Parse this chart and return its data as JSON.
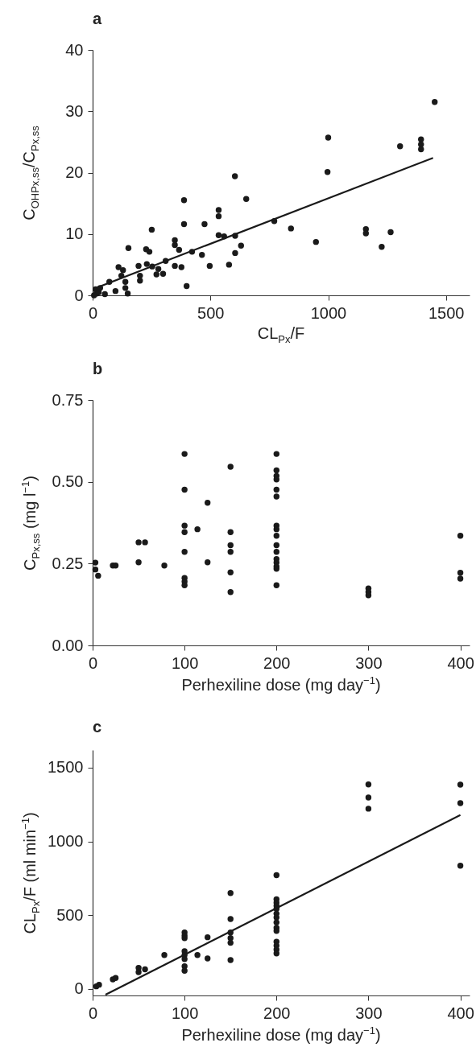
{
  "chart_data": [
    {
      "type": "scatter",
      "title": "a",
      "xlabel": "CL$_{Px}$/F",
      "ylabel": "C$_{OHPx,ss}$/C$_{Px,ss}$",
      "xlim": [
        0,
        1600
      ],
      "ylim": [
        0,
        40
      ],
      "xticks": [
        0,
        500,
        1000,
        1500
      ],
      "yticks": [
        0,
        10,
        20,
        30,
        40
      ],
      "grid": false,
      "marker": "circle",
      "series": [
        {
          "color": "#1a1a1a",
          "x": [
            1452,
            1000,
            997,
            1305,
            1394,
            1394,
            1394,
            604,
            388,
            652,
            535,
            535,
            388,
            475,
            251,
            771,
            842,
            1160,
            1160,
            1265,
            948,
            1227,
            535,
            558,
            605,
            630,
            605,
            579,
            497,
            464,
            422,
            349,
            349,
            367,
            349,
            377,
            399,
            152,
            227,
            241,
            110,
            129,
            122,
            310,
            195,
            230,
            253,
            279,
            201,
            201,
            271,
            299,
            139,
            139,
            149,
            71,
            97,
            13,
            32,
            17,
            52,
            6,
            26
          ],
          "values": [
            31.5,
            25.7,
            20.1,
            24.3,
            25.4,
            24.6,
            23.8,
            19.4,
            15.5,
            15.7,
            13.9,
            12.9,
            11.6,
            11.6,
            10.7,
            12.1,
            10.9,
            10.8,
            10.1,
            10.3,
            8.7,
            7.9,
            9.8,
            9.6,
            9.7,
            8.1,
            6.9,
            5.0,
            4.8,
            6.6,
            7.1,
            9.0,
            8.2,
            7.4,
            4.8,
            4.6,
            1.5,
            7.7,
            7.5,
            7.1,
            4.6,
            4.1,
            3.2,
            5.6,
            4.8,
            5.1,
            4.7,
            4.3,
            3.2,
            2.4,
            3.4,
            3.5,
            2.2,
            1.2,
            0.3,
            2.2,
            0.7,
            1.0,
            1.2,
            0.3,
            0.2,
            0.0,
            0.5
          ]
        },
        {
          "type": "line",
          "marker": "none",
          "color": "#1a1a1a",
          "x": [
            0,
            1445
          ],
          "values": [
            1.0,
            22.4
          ]
        }
      ]
    },
    {
      "type": "scatter",
      "title": "b",
      "xlabel": "Perhexiline dose (mg day$^{−1}$)",
      "ylabel": "C$_{Px,ss}$ (mg l$^{−1}$)",
      "xlim": [
        0,
        410
      ],
      "ylim": [
        0,
        0.75
      ],
      "xticks": [
        0,
        100,
        200,
        300,
        400
      ],
      "yticks": [
        {
          "value": 0,
          "label": "0.00"
        },
        {
          "value": 0.25,
          "label": "0.25"
        },
        {
          "value": 0.5,
          "label": "0.50"
        },
        {
          "value": 0.75,
          "label": "0.75"
        }
      ],
      "grid": false,
      "marker": "circle",
      "series": [
        {
          "color": "#1a1a1a",
          "x": [
            3,
            3,
            6,
            22,
            25,
            50,
            50,
            57,
            78,
            100,
            100,
            100,
            100,
            100,
            100,
            100,
            100,
            114,
            125,
            125,
            150,
            150,
            150,
            150,
            150,
            150,
            200,
            200,
            200,
            200,
            200,
            200,
            200,
            200,
            200,
            200,
            200,
            200,
            200,
            200,
            200,
            200,
            300,
            300,
            300,
            400,
            400,
            400
          ],
          "values": [
            0.253,
            0.232,
            0.213,
            0.244,
            0.244,
            0.315,
            0.254,
            0.315,
            0.244,
            0.585,
            0.476,
            0.366,
            0.346,
            0.286,
            0.206,
            0.195,
            0.184,
            0.355,
            0.436,
            0.254,
            0.546,
            0.346,
            0.306,
            0.286,
            0.223,
            0.163,
            0.585,
            0.535,
            0.518,
            0.507,
            0.476,
            0.455,
            0.366,
            0.355,
            0.335,
            0.306,
            0.286,
            0.264,
            0.253,
            0.241,
            0.234,
            0.184,
            0.174,
            0.163,
            0.153,
            0.335,
            0.222,
            0.204
          ]
        }
      ]
    },
    {
      "type": "scatter",
      "title": "c",
      "xlabel": "Perhexiline dose (mg day$^{−1}$)",
      "ylabel": "CL$_{Px}$/F (ml min$^{−1}$)",
      "xlim": [
        0,
        410
      ],
      "ylim": [
        -45,
        1620
      ],
      "xticks": [
        0,
        100,
        200,
        300,
        400
      ],
      "yticks": [
        0,
        500,
        1000,
        1500
      ],
      "grid": false,
      "marker": "circle",
      "series": [
        {
          "color": "#1a1a1a",
          "x": [
            4,
            7,
            22,
            25,
            50,
            50,
            57,
            78,
            100,
            100,
            100,
            100,
            100,
            100,
            100,
            100,
            114,
            125,
            125,
            150,
            150,
            150,
            150,
            150,
            150,
            200,
            200,
            200,
            200,
            200,
            200,
            200,
            200,
            200,
            200,
            200,
            200,
            200,
            200,
            300,
            300,
            300,
            400,
            400,
            400
          ],
          "values": [
            17,
            28,
            64,
            74,
            142,
            113,
            132,
            229,
            382,
            361,
            344,
            255,
            229,
            202,
            153,
            123,
            229,
            350,
            206,
            650,
            474,
            382,
            344,
            312,
            195,
            771,
            607,
            584,
            563,
            542,
            510,
            484,
            450,
            414,
            393,
            319,
            293,
            266,
            240,
            1387,
            1298,
            1222,
            1385,
            1260,
            835
          ]
        },
        {
          "type": "line",
          "marker": "none",
          "color": "#1a1a1a",
          "x": [
            14,
            400
          ],
          "values": [
            -40,
            1179
          ]
        }
      ]
    }
  ]
}
